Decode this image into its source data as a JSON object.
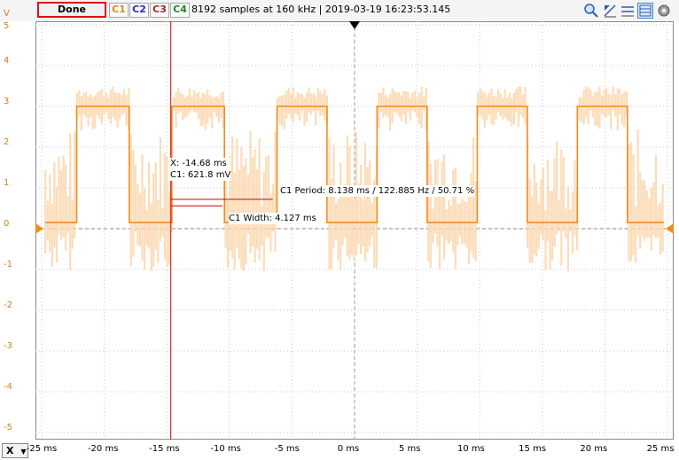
{
  "toolbar": {
    "done_label": "Done",
    "channels": [
      {
        "label": "C1",
        "color": "#e08a1e"
      },
      {
        "label": "C2",
        "color": "#2a2ad0"
      },
      {
        "label": "C3",
        "color": "#9b2a2a"
      },
      {
        "label": "C4",
        "color": "#1f8a1f"
      }
    ],
    "status_text": "8192 samples at 160 kHz | 2019-03-19 16:23:53.145",
    "icons": [
      "zoom-icon",
      "cursor-icon",
      "measure-icon",
      "grid-view-icon",
      "settings-icon"
    ]
  },
  "y_axis": {
    "unit": "V",
    "ticks": [
      "5",
      "4",
      "3",
      "2",
      "1",
      "0",
      "-1",
      "-2",
      "-3",
      "-4",
      "-5"
    ]
  },
  "x_axis": {
    "selector_label": "X",
    "ticks": [
      "-25 ms",
      "-20 ms",
      "-15 ms",
      "-10 ms",
      "-5 ms",
      "0 ms",
      "5 ms",
      "10 ms",
      "15 ms",
      "20 ms",
      "25 ms"
    ]
  },
  "cursor": {
    "x_readout": "X: -14.68 ms",
    "c1_readout": "C1: 621.8 mV"
  },
  "measurements": {
    "period": "C1 Period: 8.138 ms / 122.885 Hz / 50.71 %",
    "width": "C1 Width: 4.127 ms"
  },
  "colors": {
    "trace": "#f08c1e",
    "envelope": "#fcd8b0",
    "cursor": "#cc0000",
    "grid": "#c8c8c8"
  },
  "chart_data": {
    "type": "line",
    "xlabel": "",
    "ylabel": "V",
    "xlim": [
      -25,
      25
    ],
    "ylim": [
      -5,
      5
    ],
    "grid": true,
    "series": [
      {
        "waveform": "square",
        "high": 3.0,
        "low": 0.15,
        "rising_edges_ms": [
          -22.2,
          -14.6,
          -6.2,
          1.8,
          9.8,
          17.8
        ],
        "falling_edges_ms": [
          -18.0,
          -10.4,
          -2.2,
          5.8,
          13.8,
          21.8
        ]
      }
    ]
  }
}
